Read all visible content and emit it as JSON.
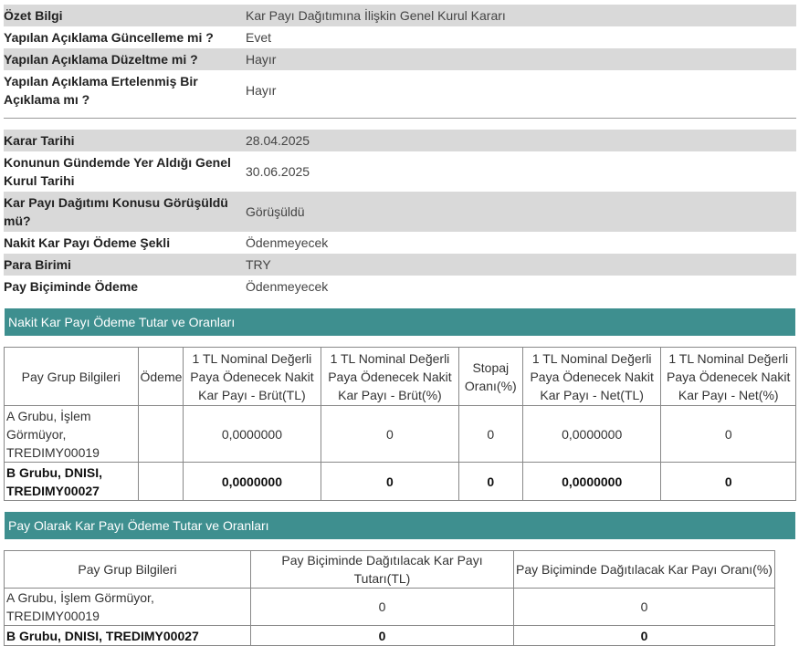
{
  "summary": [
    {
      "label": "Özet Bilgi",
      "value": "Kar Payı Dağıtımına İlişkin Genel Kurul Kararı"
    },
    {
      "label": "Yapılan Açıklama Güncelleme mi ?",
      "value": "Evet"
    },
    {
      "label": "Yapılan Açıklama Düzeltme mi ?",
      "value": "Hayır"
    },
    {
      "label": "Yapılan Açıklama Ertelenmiş Bir Açıklama mı ?",
      "value": "Hayır"
    }
  ],
  "details": [
    {
      "label": "Karar Tarihi",
      "value": "28.04.2025"
    },
    {
      "label": "Konunun Gündemde Yer Aldığı Genel Kurul Tarihi",
      "value": "30.06.2025"
    },
    {
      "label": "Kar Payı Dağıtımı Konusu Görüşüldü mü?",
      "value": "Görüşüldü"
    },
    {
      "label": "Nakit Kar Payı Ödeme Şekli",
      "value": "Ödenmeyecek"
    },
    {
      "label": "Para Birimi",
      "value": "TRY"
    },
    {
      "label": "Pay Biçiminde Ödeme",
      "value": "Ödenmeyecek"
    }
  ],
  "cash_section": {
    "title": "Nakit Kar Payı Ödeme Tutar ve Oranları",
    "headers": [
      "Pay Grup Bilgileri",
      "Ödeme",
      "1 TL Nominal Değerli Paya Ödenecek Nakit Kar Payı - Brüt(TL)",
      "1 TL Nominal Değerli Paya Ödenecek Nakit Kar Payı - Brüt(%)",
      "Stopaj Oranı(%)",
      "1 TL Nominal Değerli Paya Ödenecek Nakit Kar Payı - Net(TL)",
      "1 TL Nominal Değerli Paya Ödenecek Nakit Kar Payı - Net(%)"
    ],
    "rows": [
      {
        "group": "A Grubu, İşlem Görmüyor, TREDIMY00019",
        "payment": "",
        "gross_tl": "0,0000000",
        "gross_pct": "0",
        "withholding": "0",
        "net_tl": "0,0000000",
        "net_pct": "0"
      },
      {
        "group": "B Grubu, DNISI, TREDIMY00027",
        "payment": "",
        "gross_tl": "0,0000000",
        "gross_pct": "0",
        "withholding": "0",
        "net_tl": "0,0000000",
        "net_pct": "0"
      }
    ]
  },
  "share_section": {
    "title": "Pay Olarak Kar Payı Ödeme Tutar ve Oranları",
    "headers": [
      "Pay Grup Bilgileri",
      "Pay Biçiminde Dağıtılacak Kar Payı Tutarı(TL)",
      "Pay Biçiminde Dağıtılacak Kar Payı Oranı(%)"
    ],
    "rows": [
      {
        "group": "A Grubu, İşlem Görmüyor, TREDIMY00019",
        "amount": "0",
        "ratio": "0"
      },
      {
        "group": "B Grubu, DNISI, TREDIMY00027",
        "amount": "0",
        "ratio": "0"
      }
    ]
  }
}
